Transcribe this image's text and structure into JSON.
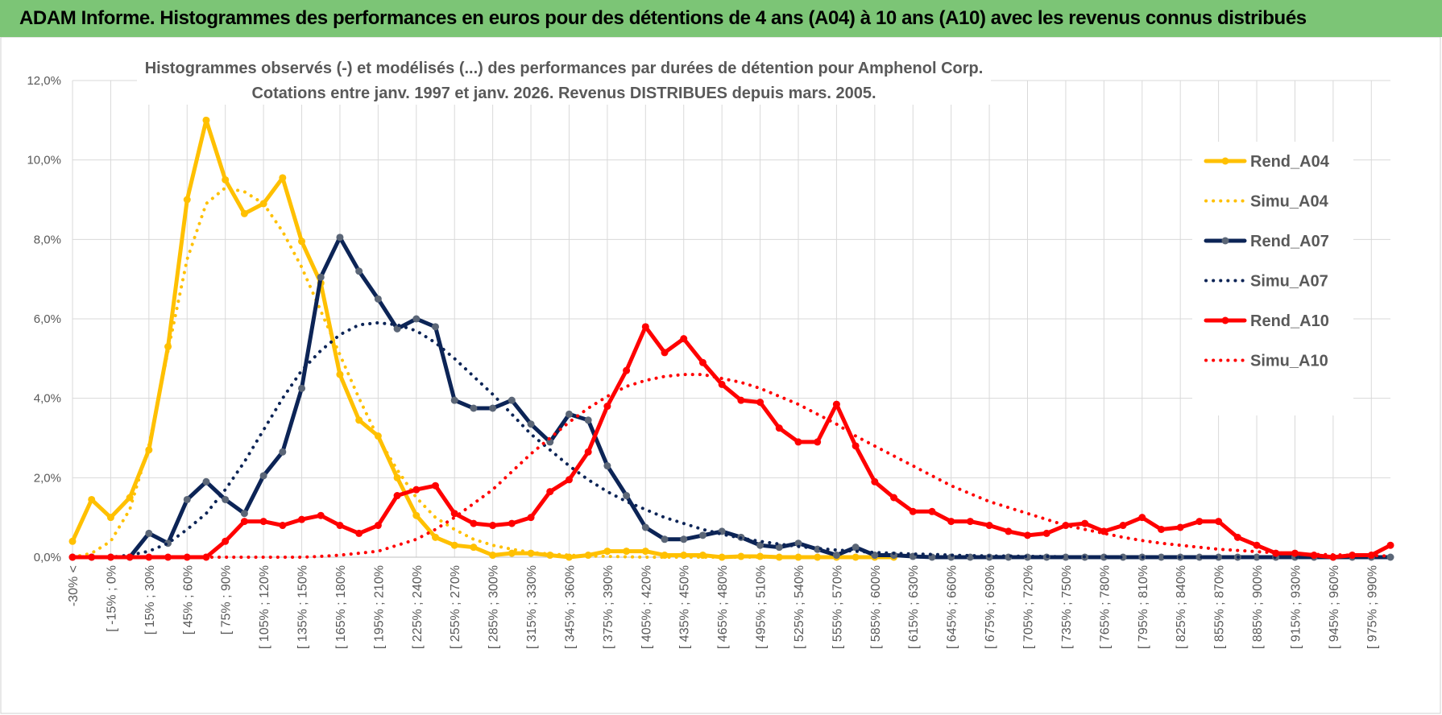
{
  "header": {
    "title": "ADAM Informe. Histogrammes des performances en euros pour des détentions de 4 ans (A04) à 10 ans (A10) avec les revenus connus distribués"
  },
  "chart_data": {
    "type": "line",
    "title": "Histogrammes observés (-) et modélisés (...) des performances par durées de détention pour Amphenol Corp.",
    "subtitle": "Cotations entre janv. 1997 et janv. 2026. Revenus DISTRIBUES depuis mars. 2005.",
    "categories": [
      "-30% <",
      null,
      "[ -15% ; 0%",
      null,
      "[ 15% ; 30%",
      null,
      "[ 45% ; 60%",
      null,
      "[ 75% ; 90%",
      null,
      "[ 105% ; 120%",
      null,
      "[ 135% ; 150%",
      null,
      "[ 165% ; 180%",
      null,
      "[ 195% ; 210%",
      null,
      "[ 225% ; 240%",
      null,
      "[ 255% ; 270%",
      null,
      "[ 285% ; 300%",
      null,
      "[ 315% ; 330%",
      null,
      "[ 345% ; 360%",
      null,
      "[ 375% ; 390%",
      null,
      "[ 405% ; 420%",
      null,
      "[ 435% ; 450%",
      null,
      "[ 465% ; 480%",
      null,
      "[ 495% ; 510%",
      null,
      "[ 525% ; 540%",
      null,
      "[ 555% ; 570%",
      null,
      "[ 585% ; 600%",
      null,
      "[ 615% ; 630%",
      null,
      "[ 645% ; 660%",
      null,
      "[ 675% ; 690%",
      null,
      "[ 705% ; 720%",
      null,
      "[ 735% ; 750%",
      null,
      "[ 765% ; 780%",
      null,
      "[ 795% ; 810%",
      null,
      "[ 825% ; 840%",
      null,
      "[ 855% ; 870%",
      null,
      "[ 885% ; 900%",
      null,
      "[ 915% ; 930%",
      null,
      "[ 945% ; 960%",
      null,
      "[ 975% ; 990%",
      null
    ],
    "ylim": [
      0,
      12
    ],
    "yticks": [
      {
        "value": 0,
        "label": "0,0%"
      },
      {
        "value": 2,
        "label": "2,0%"
      },
      {
        "value": 4,
        "label": "4,0%"
      },
      {
        "value": 6,
        "label": "6,0%"
      },
      {
        "value": 8,
        "label": "8,0%"
      },
      {
        "value": 10,
        "label": "10,0%"
      },
      {
        "value": 12,
        "label": "12,0%"
      }
    ],
    "grid": true,
    "legend": "right",
    "series": [
      {
        "name": "Rend_A04",
        "color": "#ffc000",
        "marker_color": "#ffc000",
        "style": "solid",
        "values": [
          0.4,
          1.45,
          1.0,
          1.5,
          2.7,
          5.3,
          9.0,
          11.0,
          9.5,
          8.65,
          8.9,
          9.55,
          7.95,
          6.9,
          4.6,
          3.45,
          3.05,
          2.0,
          1.05,
          0.5,
          0.3,
          0.25,
          0.05,
          0.1,
          0.1,
          0.05,
          0.0,
          0.05,
          0.15,
          0.15,
          0.15,
          0.05,
          0.05,
          0.05,
          0.0,
          0.02,
          0.02,
          0.0,
          0.0,
          0.0,
          0.0,
          0.0,
          0.0,
          0.0,
          null,
          null,
          null,
          null,
          null,
          null,
          null,
          null,
          null,
          null,
          null,
          null,
          null,
          null,
          null,
          null,
          null,
          null,
          null,
          null,
          null,
          null,
          null,
          null,
          null,
          null
        ]
      },
      {
        "name": "Simu_A04",
        "color": "#ffc000",
        "style": "dotted",
        "values": [
          0.0,
          0.1,
          0.4,
          1.2,
          2.8,
          5.2,
          7.5,
          8.9,
          9.3,
          9.2,
          8.9,
          8.2,
          7.3,
          6.2,
          5.1,
          4.0,
          3.0,
          2.2,
          1.5,
          1.0,
          0.7,
          0.45,
          0.3,
          0.2,
          0.12,
          0.08,
          0.05,
          0.03,
          0.02,
          0.01,
          0.0,
          0.0,
          0.0,
          0.0,
          0.0,
          0.0,
          0.0,
          0.0,
          0.0,
          0.0,
          0.0,
          0.0,
          0.0,
          0.0,
          null,
          null,
          null,
          null,
          null,
          null,
          null,
          null,
          null,
          null,
          null,
          null,
          null,
          null,
          null,
          null,
          null,
          null,
          null,
          null,
          null,
          null,
          null,
          null,
          null,
          null
        ]
      },
      {
        "name": "Rend_A07",
        "color": "#0c2456",
        "marker_color": "#5b6677",
        "style": "solid",
        "values": [
          0,
          0,
          0,
          0,
          0.6,
          0.35,
          1.45,
          1.9,
          1.45,
          1.1,
          2.05,
          2.65,
          4.25,
          7.05,
          8.05,
          7.2,
          6.5,
          5.75,
          6.0,
          5.8,
          3.95,
          3.75,
          3.75,
          3.95,
          3.35,
          2.9,
          3.6,
          3.45,
          2.3,
          1.55,
          0.75,
          0.45,
          0.45,
          0.55,
          0.65,
          0.5,
          0.3,
          0.25,
          0.35,
          0.2,
          0.05,
          0.25,
          0.05,
          0.05,
          0.02,
          0,
          0,
          0,
          0,
          0,
          0,
          0,
          0,
          0,
          0,
          0,
          0,
          0,
          0,
          0,
          0,
          0,
          0,
          0,
          0,
          0,
          0,
          0,
          0,
          0
        ]
      },
      {
        "name": "Simu_A07",
        "color": "#0c2456",
        "style": "dotted",
        "values": [
          0,
          0,
          0,
          0.05,
          0.15,
          0.35,
          0.7,
          1.1,
          1.7,
          2.4,
          3.2,
          4.0,
          4.7,
          5.2,
          5.6,
          5.85,
          5.9,
          5.85,
          5.7,
          5.4,
          5.0,
          4.55,
          4.1,
          3.6,
          3.1,
          2.7,
          2.3,
          1.95,
          1.65,
          1.4,
          1.2,
          1.0,
          0.85,
          0.7,
          0.58,
          0.48,
          0.4,
          0.33,
          0.27,
          0.22,
          0.18,
          0.15,
          0.12,
          0.1,
          0.08,
          0.07,
          0.05,
          0.04,
          0.03,
          0.03,
          0.02,
          0.02,
          0.01,
          0.01,
          0.01,
          0,
          0,
          0,
          0,
          0,
          0,
          0,
          0,
          0,
          0,
          0,
          0,
          0,
          0,
          0
        ]
      },
      {
        "name": "Rend_A10",
        "color": "#ff0000",
        "marker_color": "#ff0000",
        "style": "solid",
        "values": [
          0,
          0,
          0,
          0,
          0,
          0,
          0,
          0,
          0.4,
          0.9,
          0.9,
          0.8,
          0.95,
          1.05,
          0.8,
          0.6,
          0.8,
          1.55,
          1.7,
          1.8,
          1.1,
          0.85,
          0.8,
          0.85,
          1.0,
          1.65,
          1.95,
          2.65,
          3.8,
          4.7,
          5.8,
          5.15,
          5.5,
          4.9,
          4.35,
          3.95,
          3.9,
          3.25,
          2.9,
          2.9,
          3.85,
          2.8,
          1.9,
          1.5,
          1.15,
          1.15,
          0.9,
          0.9,
          0.8,
          0.65,
          0.55,
          0.6,
          0.8,
          0.85,
          0.65,
          0.8,
          1.0,
          0.7,
          0.75,
          0.9,
          0.9,
          0.5,
          0.3,
          0.1,
          0.1,
          0.05,
          0.0,
          0.05,
          0.05,
          0.3
        ]
      },
      {
        "name": "Simu_A10",
        "color": "#ff0000",
        "style": "dotted",
        "values": [
          0,
          0,
          0,
          0,
          0,
          0,
          0,
          0,
          0,
          0,
          0,
          0,
          0,
          0.02,
          0.05,
          0.1,
          0.15,
          0.3,
          0.45,
          0.7,
          1.0,
          1.35,
          1.7,
          2.15,
          2.6,
          3.0,
          3.4,
          3.75,
          4.05,
          4.3,
          4.45,
          4.55,
          4.6,
          4.6,
          4.5,
          4.4,
          4.25,
          4.05,
          3.85,
          3.6,
          3.35,
          3.05,
          2.8,
          2.55,
          2.3,
          2.05,
          1.8,
          1.6,
          1.4,
          1.25,
          1.1,
          0.95,
          0.8,
          0.7,
          0.6,
          0.5,
          0.42,
          0.35,
          0.3,
          0.25,
          0.2,
          0.17,
          0.14,
          0.11,
          0.09,
          0.07,
          0.06,
          0.05,
          0.04,
          0.03
        ]
      }
    ]
  }
}
